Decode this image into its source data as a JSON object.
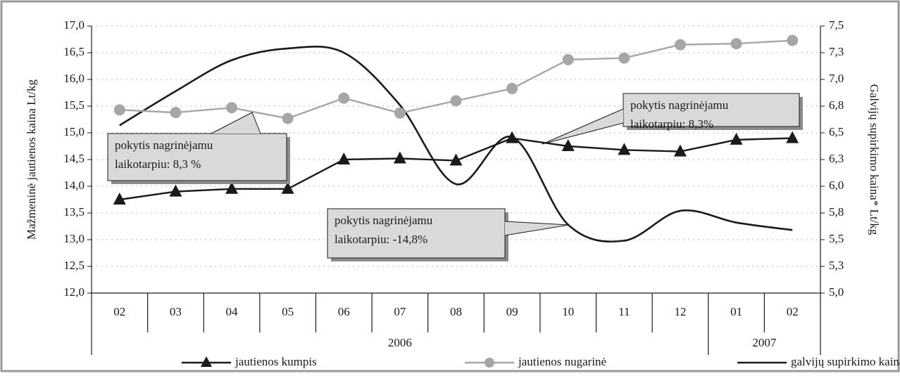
{
  "chart_data": {
    "type": "line",
    "ylabel": "Mažmeninė jautienos kaina Lt/kg",
    "y2label": "Galvijų supirkimo kaina* Lt/kg",
    "categories": [
      "02",
      "03",
      "04",
      "05",
      "06",
      "07",
      "08",
      "09",
      "10",
      "11",
      "12",
      "01",
      "02"
    ],
    "years": [
      "2006",
      "2007"
    ],
    "ylim": [
      12,
      17
    ],
    "yticks": [
      {
        "value": 12,
        "label": "12,0"
      },
      {
        "value": 12.5,
        "label": "12,5"
      },
      {
        "value": 13,
        "label": "13,0"
      },
      {
        "value": 13.5,
        "label": "13,5"
      },
      {
        "value": 14,
        "label": "14,0"
      },
      {
        "value": 14.5,
        "label": "14,5"
      },
      {
        "value": 15,
        "label": "15,0"
      },
      {
        "value": 15.5,
        "label": "15,5"
      },
      {
        "value": 16,
        "label": "16,0"
      },
      {
        "value": 16.5,
        "label": "16,5"
      },
      {
        "value": 17,
        "label": "17,0"
      }
    ],
    "y2lim": [
      5,
      7.5
    ],
    "y2ticks": [
      {
        "value": 5,
        "label": "5,0"
      },
      {
        "value": 5.25,
        "label": "5,3"
      },
      {
        "value": 5.5,
        "label": "5,5"
      },
      {
        "value": 5.75,
        "label": "5,8"
      },
      {
        "value": 6,
        "label": "6,0"
      },
      {
        "value": 6.25,
        "label": "6,3"
      },
      {
        "value": 6.5,
        "label": "6,5"
      },
      {
        "value": 6.75,
        "label": "6,8"
      },
      {
        "value": 7,
        "label": "7,0"
      },
      {
        "value": 7.25,
        "label": "7,3"
      },
      {
        "value": 7.5,
        "label": "7,5"
      }
    ],
    "grid": true,
    "series": [
      {
        "name": "jautienos kumpis",
        "color": "#1a1a1a",
        "marker": "triangle",
        "values": [
          13.75,
          13.9,
          13.95,
          13.95,
          14.5,
          14.52,
          14.48,
          14.9,
          14.75,
          14.68,
          14.65,
          14.87,
          14.9
        ]
      },
      {
        "name": "jautienos nugarinė",
        "color": "#a6a6a6",
        "marker": "circle",
        "values": [
          15.43,
          15.38,
          15.47,
          15.27,
          15.65,
          15.37,
          15.6,
          15.83,
          16.37,
          16.4,
          16.65,
          16.67,
          16.73
        ]
      },
      {
        "name": "galvijų supirkimo kaina*",
        "color": "#1a1a1a",
        "marker": "none",
        "axis": "y2",
        "values": [
          6.57,
          6.89,
          7.18,
          7.29,
          7.25,
          6.76,
          6.02,
          6.46,
          5.64,
          5.49,
          5.77,
          5.66,
          5.59
        ]
      }
    ],
    "annotations": [
      {
        "lines": [
          "pokytis nagrinėjamu",
          "laikotarpiu: 8,3 %"
        ]
      },
      {
        "lines": [
          "pokytis nagrinėjamu",
          "laikotarpiu: 8,3%"
        ]
      },
      {
        "lines": [
          "pokytis nagrinėjamu",
          "laikotarpiu: -14,8%"
        ]
      }
    ]
  }
}
